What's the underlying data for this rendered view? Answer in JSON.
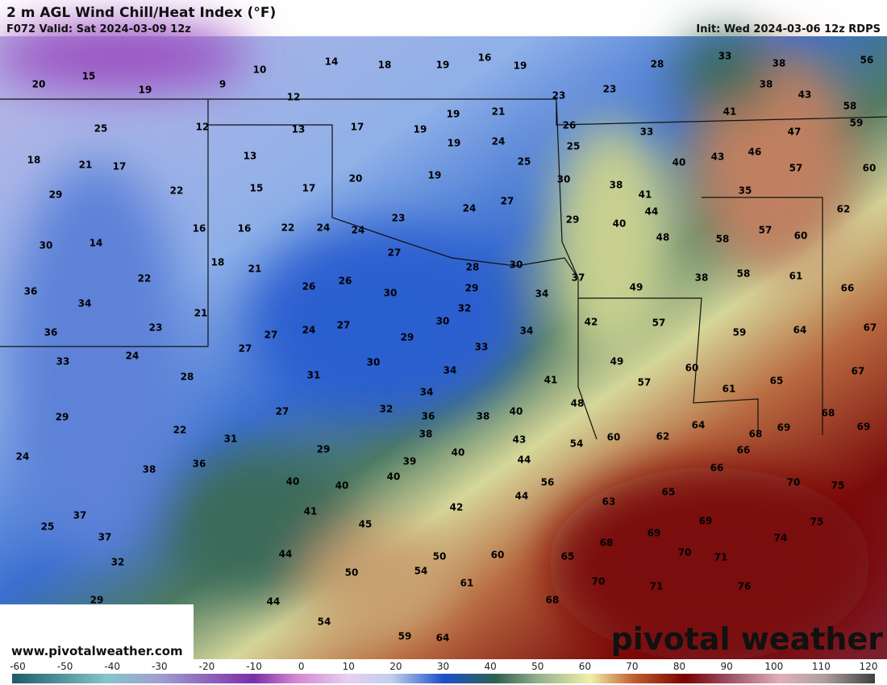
{
  "header": {
    "title": "2 m AGL Wind Chill/Heat Index (°F)",
    "valid": "F072 Valid: Sat 2024-03-09 12z",
    "init": "Init: Wed 2024-03-06 12z RDPS"
  },
  "map": {
    "labels": [
      20,
      15,
      19,
      9,
      10,
      14,
      18,
      19,
      16,
      19,
      28,
      33,
      38,
      56,
      23,
      23,
      12,
      38,
      43,
      58,
      25,
      12,
      13,
      17,
      19,
      19,
      21,
      26,
      33,
      41,
      47,
      59,
      18,
      21,
      17,
      13,
      19,
      24,
      25,
      25,
      43,
      46,
      40,
      57,
      60,
      29,
      22,
      15,
      17,
      20,
      19,
      30,
      38,
      41,
      35,
      16,
      16,
      22,
      24,
      24,
      23,
      24,
      27,
      29,
      44,
      40,
      48,
      58,
      57,
      60,
      62,
      30,
      14,
      18,
      21,
      27,
      28,
      30,
      37,
      49,
      38,
      58,
      61,
      66,
      36,
      22,
      26,
      26,
      30,
      29,
      34,
      34,
      21,
      32,
      30,
      42,
      57,
      59,
      64,
      67,
      36,
      23,
      27,
      24,
      27,
      29,
      34,
      33,
      33,
      24,
      27,
      30,
      31,
      34,
      49,
      60,
      67,
      28,
      41,
      57,
      65,
      61,
      29,
      27,
      32,
      34,
      36,
      38,
      40,
      48,
      68,
      69,
      69,
      64,
      68,
      22,
      31,
      38,
      43,
      54,
      60,
      62,
      66,
      24,
      36,
      29,
      39,
      40,
      44,
      56,
      66,
      38,
      40,
      40,
      40,
      70,
      75,
      65,
      37,
      41,
      42,
      44,
      63,
      69,
      25,
      45,
      69,
      75,
      74,
      37,
      44,
      50,
      60,
      65,
      68,
      70,
      71,
      32,
      50,
      54,
      61,
      70,
      71,
      76,
      29,
      44,
      68,
      54,
      59,
      64
    ]
  },
  "colorbar": {
    "ticks": [
      -60,
      -50,
      -40,
      -30,
      -20,
      -10,
      0,
      10,
      20,
      30,
      40,
      50,
      60,
      70,
      80,
      90,
      100,
      110,
      120
    ]
  },
  "footer": {
    "website": "www.pivotalweather.com",
    "brand": "pivotal weather"
  }
}
